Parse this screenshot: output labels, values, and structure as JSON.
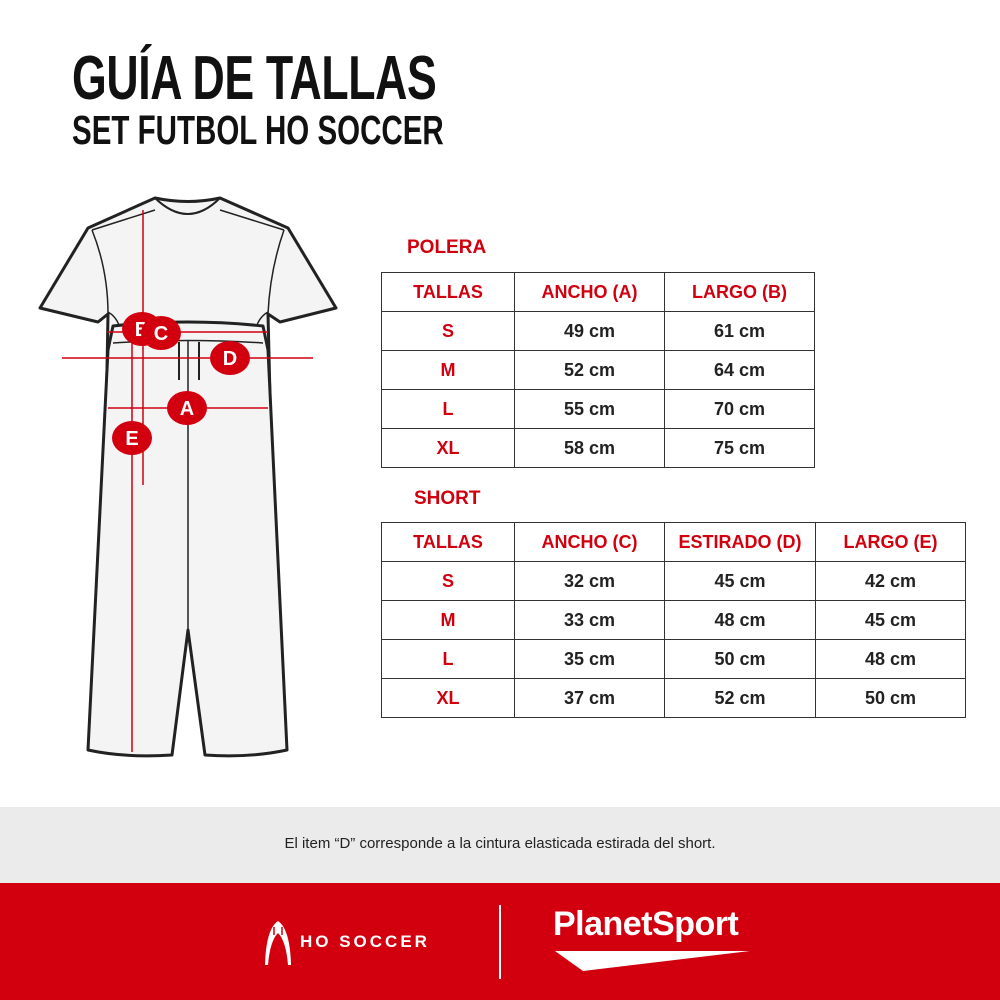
{
  "header": {
    "title": "GUÍA DE TALLAS",
    "subtitle": "SET FUTBOL HO SOCCER"
  },
  "diagram": {
    "markers": [
      "A",
      "B",
      "C",
      "D",
      "E"
    ],
    "accent_color": "#d2000f"
  },
  "polera": {
    "label": "POLERA",
    "headers": [
      "TALLAS",
      "ANCHO (A)",
      "LARGO (B)"
    ],
    "rows": [
      [
        "S",
        "49 cm",
        "61 cm"
      ],
      [
        "M",
        "52 cm",
        "64 cm"
      ],
      [
        "L",
        "55 cm",
        "70 cm"
      ],
      [
        "XL",
        "58 cm",
        "75 cm"
      ]
    ]
  },
  "short": {
    "label": "SHORT",
    "headers": [
      "TALLAS",
      "ANCHO (C)",
      "ESTIRADO (D)",
      "LARGO (E)"
    ],
    "rows": [
      [
        "S",
        "32 cm",
        "45 cm",
        "42 cm"
      ],
      [
        "M",
        "33 cm",
        "48 cm",
        "45 cm"
      ],
      [
        "L",
        "35 cm",
        "50 cm",
        "48 cm"
      ],
      [
        "XL",
        "37 cm",
        "52 cm",
        "50 cm"
      ]
    ]
  },
  "note": "El item “D” corresponde a la cintura elasticada estirada del short.",
  "footer": {
    "brand_left": "HO SOCCER",
    "brand_right": "PlanetSport",
    "background": "#d2000f"
  }
}
